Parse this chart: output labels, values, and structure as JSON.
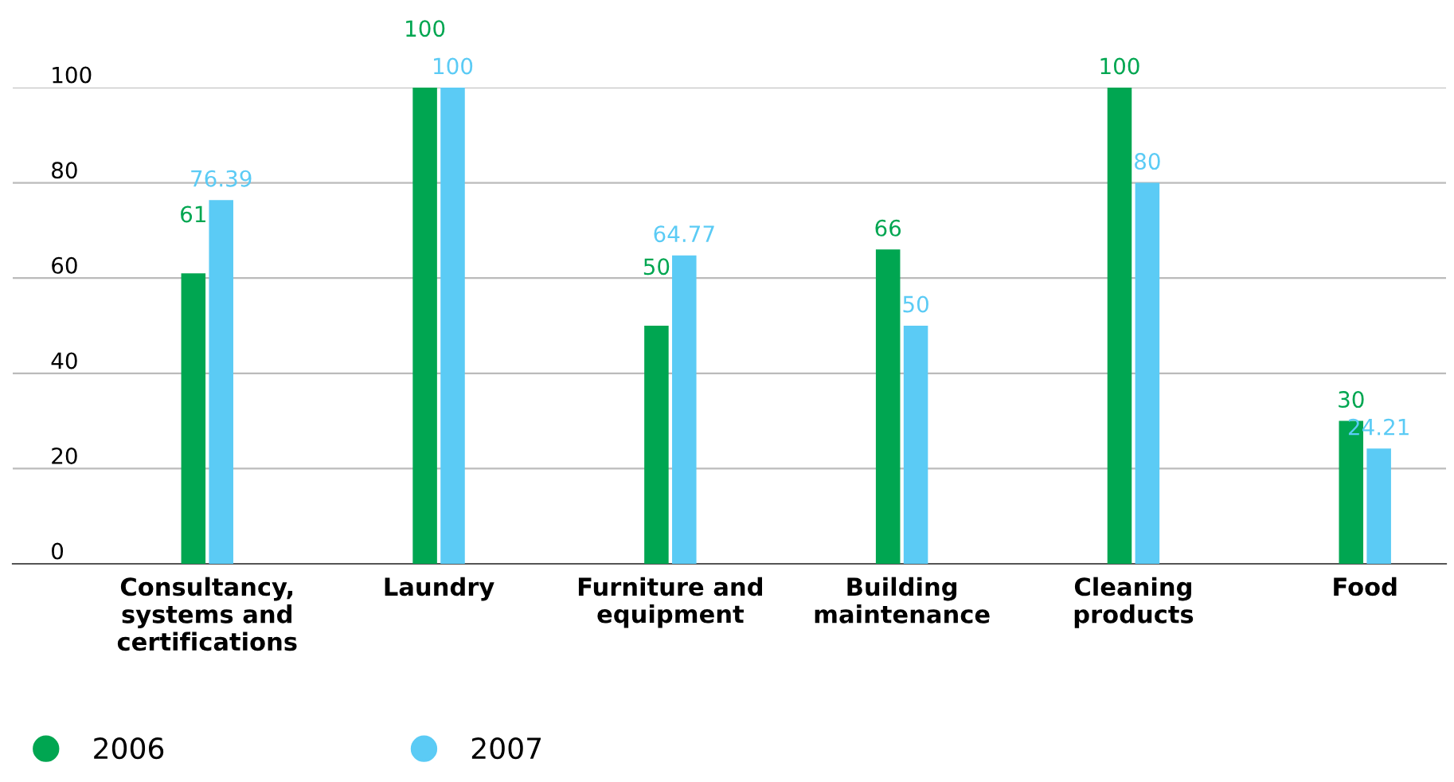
{
  "chart_data": {
    "type": "bar",
    "categories": [
      "Consultancy, systems and certifications",
      "Laundry",
      "Furniture and equipment",
      "Building maintenance",
      "Cleaning products",
      "Food"
    ],
    "series": [
      {
        "name": "2006",
        "color": "#00a651",
        "values": [
          61,
          100,
          50,
          66,
          100,
          30
        ]
      },
      {
        "name": "2007",
        "color": "#5bcbf5",
        "values": [
          76.39,
          100,
          64.77,
          50,
          80,
          24.21
        ]
      }
    ],
    "ylim": [
      0,
      100
    ],
    "yticks": [
      0,
      20,
      40,
      60,
      80,
      100
    ],
    "grid": "y",
    "legend": "bottom left",
    "data_labels": true
  }
}
